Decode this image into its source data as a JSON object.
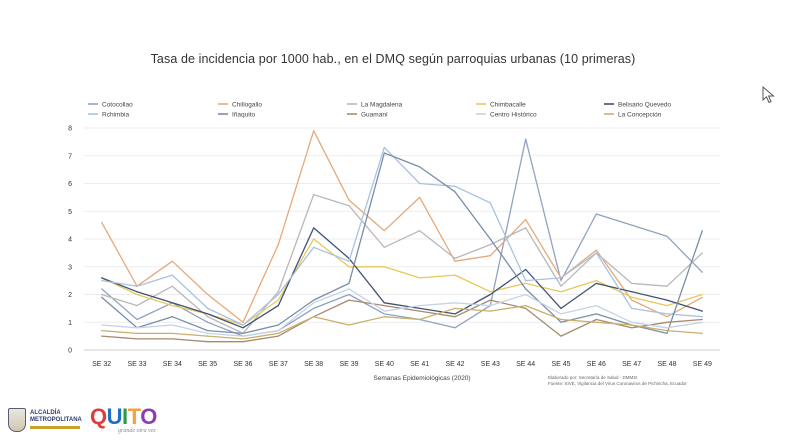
{
  "chart_data": {
    "type": "line",
    "title": "Tasa de incidencia por 1000 hab., en el DMQ según parroquias urbanas (10 primeras)",
    "xlabel": "Semanas Epidemiológicas (2020)",
    "ylabel": "",
    "ylim": [
      0,
      8
    ],
    "yticks": [
      "0",
      "1",
      "2",
      "3",
      "4",
      "5",
      "6",
      "7",
      "8"
    ],
    "grid": true,
    "legend_position": "top",
    "categories": [
      "SE 32",
      "SE 33",
      "SE 34",
      "SE 35",
      "SE 36",
      "SE 37",
      "SE 38",
      "SE 39",
      "SE 40",
      "SE 41",
      "SE 42",
      "SE 43",
      "SE 44",
      "SE 45",
      "SE 46",
      "SE 47",
      "SE 48",
      "SE 49"
    ],
    "series": [
      {
        "name": "Cotocollao",
        "color": "#8fa3c0",
        "values": [
          2.2,
          1.1,
          1.7,
          1.0,
          0.5,
          0.7,
          1.5,
          2.0,
          1.3,
          1.1,
          0.8,
          1.6,
          7.6,
          2.5,
          4.9,
          4.5,
          4.1,
          2.8
        ]
      },
      {
        "name": "Chillogallo",
        "color": "#e6a97a",
        "values": [
          4.6,
          2.3,
          3.2,
          2.0,
          1.0,
          3.8,
          7.9,
          5.4,
          4.3,
          5.5,
          3.2,
          3.4,
          4.7,
          2.6,
          3.6,
          1.8,
          1.2,
          1.9
        ]
      },
      {
        "name": "La Magdalena",
        "color": "#b8b8b8",
        "values": [
          2.0,
          1.6,
          2.3,
          1.2,
          0.6,
          2.1,
          5.6,
          5.2,
          3.7,
          4.3,
          3.3,
          3.8,
          4.4,
          2.3,
          3.5,
          2.4,
          2.3,
          3.5
        ]
      },
      {
        "name": "Chimbacalle",
        "color": "#e9c85a",
        "values": [
          2.6,
          2.0,
          1.6,
          1.3,
          0.9,
          1.8,
          4.0,
          3.0,
          3.0,
          2.6,
          2.7,
          2.1,
          2.4,
          2.1,
          2.5,
          1.9,
          1.6,
          2.0
        ]
      },
      {
        "name": "Belisario Quevedo",
        "color": "#3f5270",
        "values": [
          2.6,
          2.1,
          1.7,
          1.3,
          0.8,
          1.6,
          4.4,
          3.3,
          1.7,
          1.5,
          1.3,
          2.0,
          2.9,
          1.5,
          2.4,
          2.1,
          1.8,
          1.4
        ]
      },
      {
        "name": "Rchimbia",
        "color": "#a9c2e0",
        "values": [
          2.5,
          2.3,
          2.7,
          1.5,
          0.9,
          2.0,
          3.7,
          3.2,
          7.3,
          6.0,
          5.9,
          5.3,
          2.5,
          2.6,
          3.5,
          1.5,
          1.3,
          1.2
        ]
      },
      {
        "name": "Iñaquito",
        "color": "#7a8ea8",
        "values": [
          1.9,
          0.8,
          1.2,
          0.7,
          0.6,
          0.9,
          1.8,
          2.4,
          7.1,
          6.6,
          5.7,
          4.0,
          2.2,
          1.0,
          1.3,
          0.9,
          0.6,
          4.3
        ]
      },
      {
        "name": "Guamaní",
        "color": "#a78a6f",
        "values": [
          0.5,
          0.4,
          0.4,
          0.3,
          0.3,
          0.5,
          1.2,
          1.8,
          1.6,
          1.4,
          1.2,
          1.8,
          1.5,
          0.5,
          1.1,
          0.8,
          1.0,
          1.1
        ]
      },
      {
        "name": "Centro Histórico",
        "color": "#c5d3e6",
        "values": [
          0.9,
          0.8,
          0.9,
          0.6,
          0.5,
          0.7,
          1.7,
          2.2,
          1.4,
          1.6,
          1.7,
          1.6,
          2.0,
          1.3,
          1.6,
          1.0,
          0.8,
          1.0
        ]
      },
      {
        "name": "La Concepción",
        "color": "#c9b06a",
        "values": [
          0.7,
          0.6,
          0.6,
          0.5,
          0.4,
          0.6,
          1.2,
          0.9,
          1.2,
          1.1,
          1.5,
          1.4,
          1.6,
          1.1,
          1.0,
          0.9,
          0.7,
          0.6
        ]
      }
    ],
    "notes": [
      "Elaborado por: Secretaría de Salud - DMMSI",
      "Fuente: SIVE, Vigilancia del Virus Coronavirus de Pichincha, Ecuador"
    ]
  },
  "logos": {
    "municipality_text": "ALCALDÍA METROPOLITANA",
    "quito_text": "QUITO",
    "quito_tagline": "grande otra vez"
  },
  "icons": {
    "cursor": "mouse-pointer-icon"
  }
}
